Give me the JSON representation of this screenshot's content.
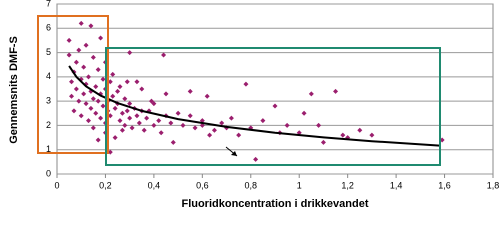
{
  "chart_data": {
    "type": "scatter",
    "xlabel": "Fluoridkoncentration i drikkevandet",
    "ylabel": "Gennemsnits DMF-S",
    "xlim": [
      0,
      1.8
    ],
    "xticks": [
      0,
      {
        "value": 0.2,
        "label": "0,2"
      },
      {
        "value": 0.4,
        "label": "0,4"
      },
      {
        "value": 0.6,
        "label": "0,6"
      },
      {
        "value": 0.8,
        "label": "0,8"
      },
      1,
      {
        "value": 1.2,
        "label": "1,2"
      },
      {
        "value": 1.4,
        "label": "1,4"
      },
      {
        "value": 1.6,
        "label": "1,6"
      },
      {
        "value": 1.8,
        "label": "1,8"
      }
    ],
    "ylim": [
      0,
      7
    ],
    "yticks": [
      0,
      1,
      2,
      3,
      4,
      5,
      6,
      7
    ],
    "grid": true,
    "series": [
      {
        "color": "#9b1f6e",
        "x": [
          0.05,
          0.05,
          0.06,
          0.06,
          0.07,
          0.07,
          0.08,
          0.08,
          0.09,
          0.09,
          0.1,
          0.1,
          0.1,
          0.11,
          0.11,
          0.12,
          0.12,
          0.12,
          0.13,
          0.13,
          0.14,
          0.14,
          0.14,
          0.15,
          0.15,
          0.15,
          0.16,
          0.16,
          0.17,
          0.17,
          0.17,
          0.18,
          0.18,
          0.18,
          0.19,
          0.19,
          0.2,
          0.2,
          0.2,
          0.2,
          0.21,
          0.21,
          0.22,
          0.22,
          0.22,
          0.23,
          0.23,
          0.24,
          0.24,
          0.25,
          0.25,
          0.26,
          0.26,
          0.27,
          0.27,
          0.28,
          0.28,
          0.29,
          0.29,
          0.3,
          0.3,
          0.3,
          0.31,
          0.32,
          0.33,
          0.33,
          0.34,
          0.35,
          0.35,
          0.36,
          0.37,
          0.38,
          0.39,
          0.4,
          0.4,
          0.42,
          0.43,
          0.44,
          0.45,
          0.45,
          0.47,
          0.48,
          0.5,
          0.52,
          0.55,
          0.55,
          0.57,
          0.6,
          0.6,
          0.62,
          0.63,
          0.65,
          0.68,
          0.7,
          0.72,
          0.75,
          0.78,
          0.8,
          0.82,
          0.85,
          0.9,
          0.92,
          0.95,
          1.0,
          1.02,
          1.05,
          1.08,
          1.1,
          1.15,
          1.18,
          1.2,
          1.25,
          1.3,
          1.59
        ],
        "values": [
          5.5,
          4.9,
          3.8,
          3.2,
          4.2,
          2.6,
          4.6,
          3.5,
          3.0,
          5.1,
          6.2,
          3.9,
          2.4,
          4.4,
          3.3,
          5.3,
          2.9,
          3.7,
          4.0,
          2.2,
          6.1,
          3.4,
          2.7,
          4.8,
          3.1,
          1.9,
          3.6,
          2.5,
          4.3,
          3.0,
          1.4,
          5.6,
          3.3,
          2.3,
          2.8,
          3.9,
          4.6,
          3.5,
          2.1,
          1.7,
          3.0,
          2.6,
          3.8,
          2.4,
          0.9,
          3.2,
          4.1,
          2.7,
          1.5,
          3.4,
          2.9,
          2.2,
          3.6,
          2.5,
          1.8,
          3.1,
          2.0,
          2.6,
          3.8,
          5.0,
          2.3,
          2.9,
          1.9,
          2.7,
          3.8,
          2.4,
          2.1,
          3.5,
          2.6,
          1.8,
          2.3,
          2.6,
          3.0,
          2.9,
          2.0,
          2.2,
          1.7,
          4.9,
          3.3,
          2.4,
          2.1,
          1.3,
          2.5,
          2.0,
          3.4,
          2.4,
          1.9,
          2.0,
          2.2,
          3.2,
          1.6,
          1.8,
          2.1,
          1.9,
          2.3,
          1.6,
          3.7,
          1.9,
          0.6,
          2.2,
          2.8,
          1.7,
          2.0,
          1.7,
          2.5,
          3.3,
          2.0,
          1.3,
          3.4,
          1.6,
          1.5,
          1.8,
          1.6,
          1.4
        ]
      }
    ],
    "trend": {
      "color": "#000000",
      "x": [
        0.05,
        0.08,
        0.12,
        0.18,
        0.25,
        0.35,
        0.5,
        0.7,
        0.9,
        1.1,
        1.3,
        1.58
      ],
      "values": [
        4.45,
        4.0,
        3.61,
        3.23,
        2.92,
        2.6,
        2.26,
        1.94,
        1.7,
        1.51,
        1.35,
        1.17
      ]
    }
  }
}
